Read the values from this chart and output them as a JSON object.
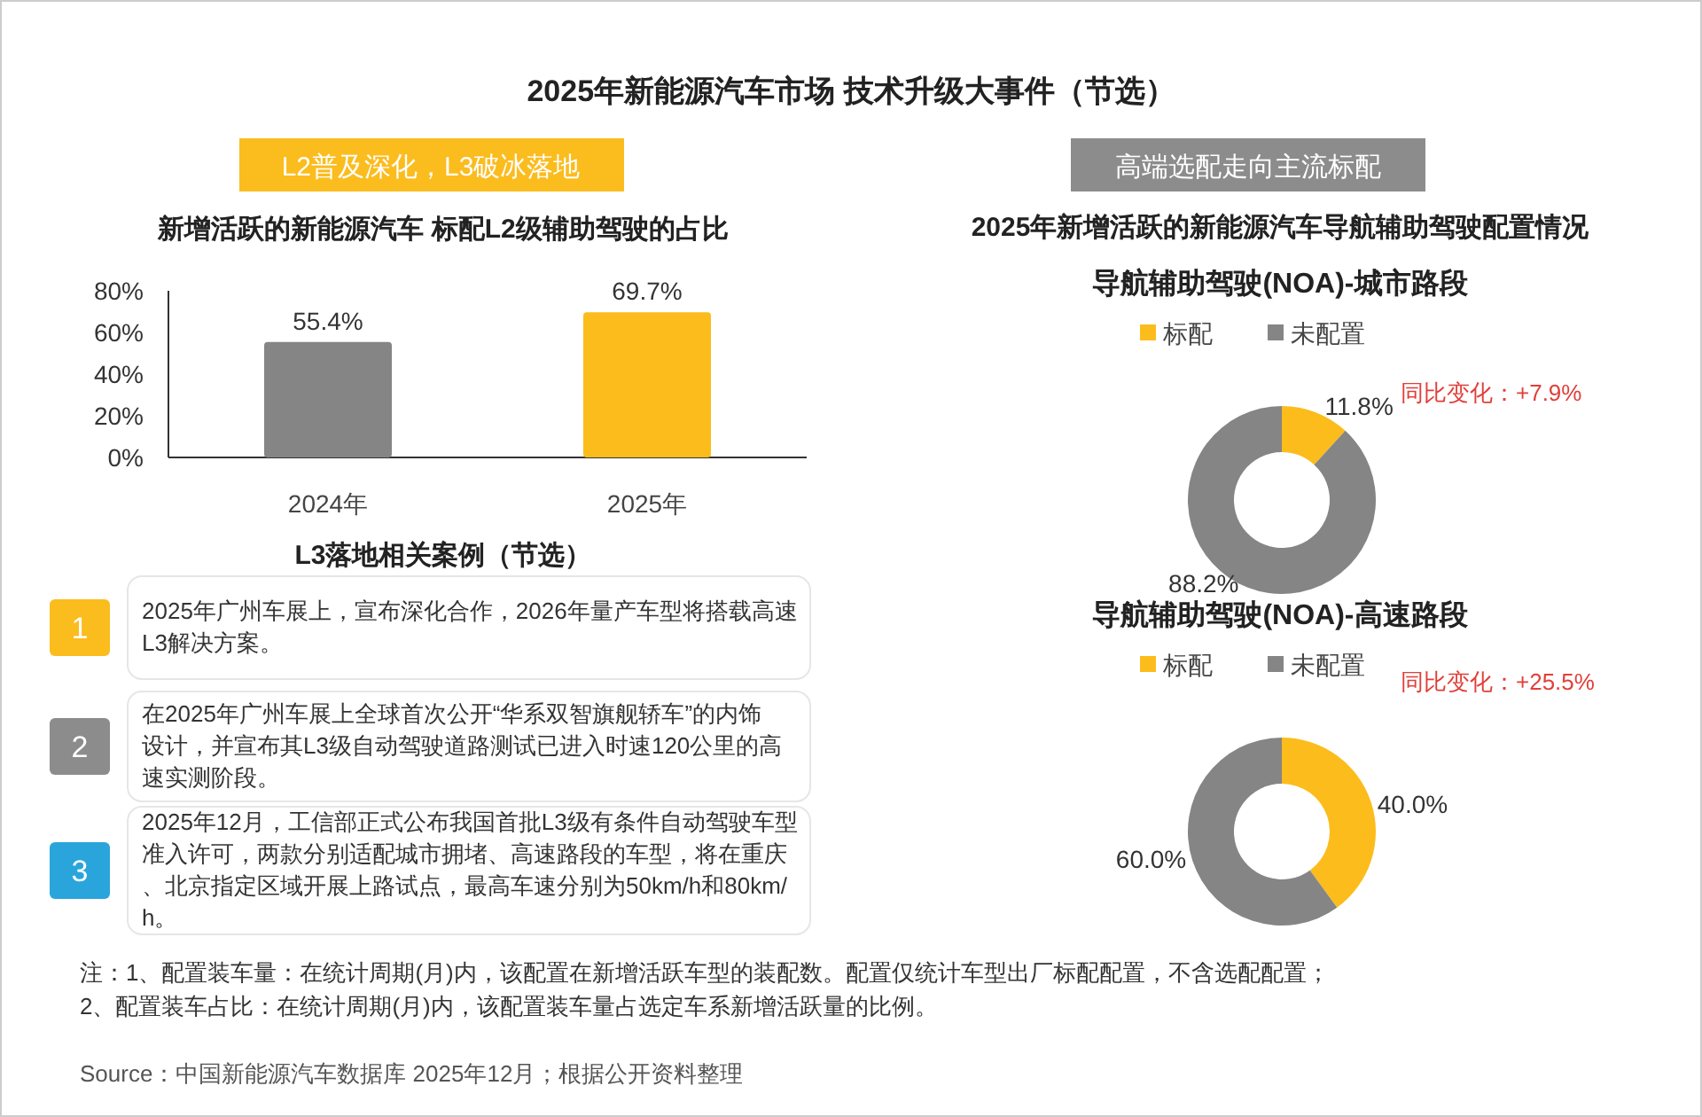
{
  "chart_data": [
    {
      "type": "other",
      "title": "2025年新能源汽车市场 技术升级大事件（节选）",
      "annotations": [
        "L2普及深化，L3破冰落地",
        "高端选配走向主流标配",
        "2025年新增活跃的新能源汽车导航辅助驾驶配置情况",
        "注：1、配置装车量：在统计周期(月)内，该配置在新增活跃车型的装配数。配置仅统计车型出厂标配配置，不含选配配置；",
        "2、配置装车占比：在统计周期(月)内，该配置装车量占选定车系新增活跃量的比例。",
        "Source：中国新能源汽车数据库 2025年12月；根据公开资料整理"
      ]
    },
    {
      "type": "bar",
      "title": "新增活跃的新能源汽车 标配L2级辅助驾驶的占比",
      "categories": [
        "2024年",
        "2025年"
      ],
      "values": [
        55.4,
        69.7
      ],
      "colors": [
        "#858585",
        "#fcbc1c"
      ],
      "value_labels": [
        "55.4%",
        "69.7%"
      ],
      "ylim": [
        0,
        80
      ],
      "yticks": [
        {
          "value": 0,
          "label": "0%"
        },
        {
          "value": 20,
          "label": "20%"
        },
        {
          "value": 40,
          "label": "40%"
        },
        {
          "value": 60,
          "label": "60%"
        },
        {
          "value": 80,
          "label": "80%"
        }
      ]
    },
    {
      "type": "other",
      "title": "L3落地相关案例（节选）",
      "annotations": [
        "1",
        "2025年广州车展上，宣布深化合作，2026年量产车型将搭载高速L3解决方案。",
        "2",
        "在2025年广州车展上全球首次公开“华系双智旗舰轿车”的内饰设计，并宣布其L3级自动驾驶道路测试已进入时速120公里的高速实测阶段。",
        "3",
        "2025年12月，工信部正式公布我国首批L3级有条件自动驾驶车型准入许可，两款分别适配城市拥堵、高速路段的车型，将在重庆、北京指定区域开展上路试点，最高车速分别为50km/h和80km/h。"
      ]
    },
    {
      "type": "donut",
      "title": "导航辅助驾驶(NOA)-城市路段",
      "categories": [
        "标配",
        "未配置"
      ],
      "values": [
        11.8,
        88.2
      ],
      "colors": [
        "#fcbc1c",
        "#858585"
      ],
      "value_labels": [
        "11.8%",
        "88.2%"
      ],
      "legend": "top",
      "annotations": [
        "同比变化：+7.9%"
      ]
    },
    {
      "type": "donut",
      "title": "导航辅助驾驶(NOA)-高速路段",
      "categories": [
        "标配",
        "未配置"
      ],
      "values": [
        40.0,
        60.0
      ],
      "colors": [
        "#fcbc1c",
        "#858585"
      ],
      "value_labels": [
        "40.0%",
        "60.0%"
      ],
      "legend": "top",
      "annotations": [
        "同比变化：+25.5%"
      ]
    }
  ]
}
